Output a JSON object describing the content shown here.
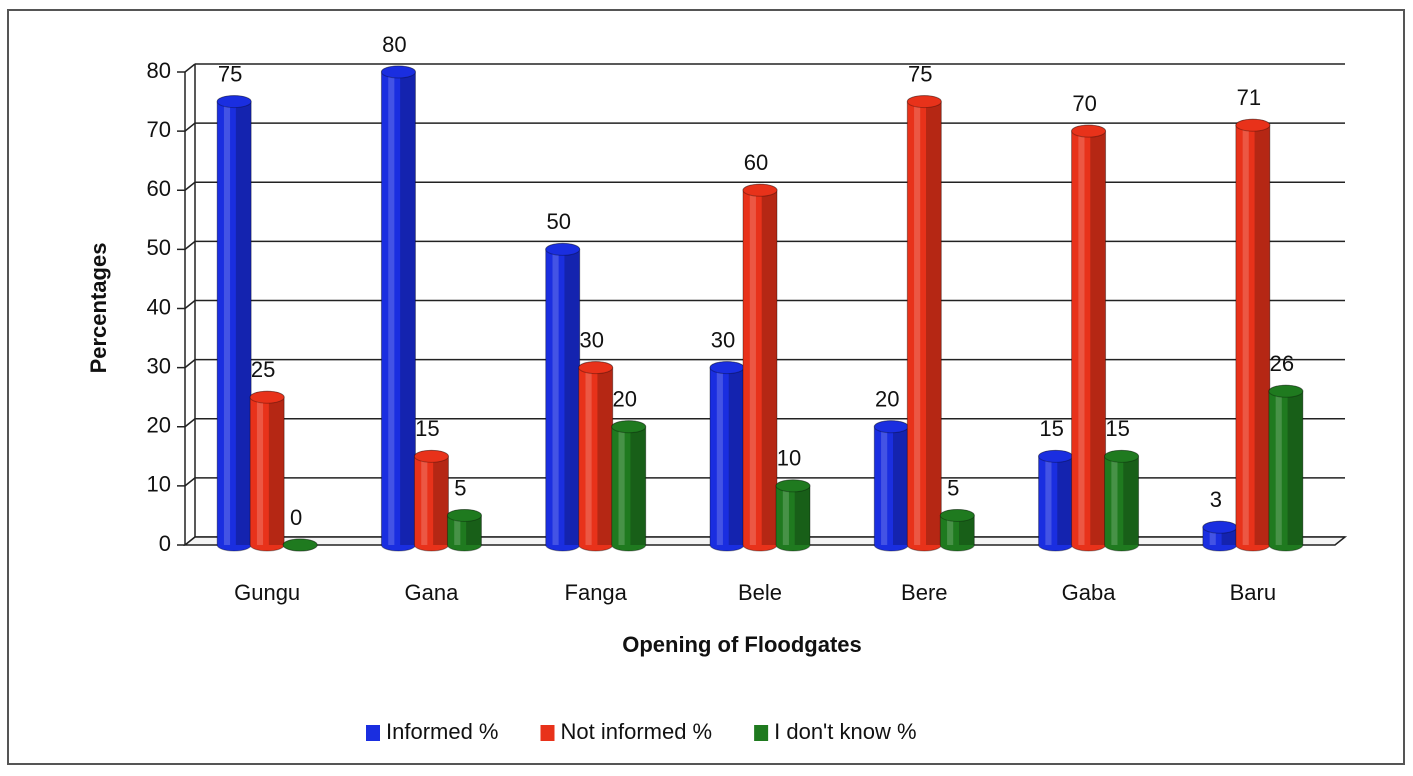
{
  "chart_data": {
    "type": "bar",
    "y_label": "Percentages",
    "x_label": "Opening of Floodgates",
    "categories": [
      "Gungu",
      "Gana",
      "Fanga",
      "Bele",
      "Bere",
      "Gaba",
      "Baru"
    ],
    "series": [
      {
        "name": "Informed %",
        "color": "#1a2ee0",
        "values": [
          75,
          80,
          50,
          30,
          20,
          15,
          3
        ]
      },
      {
        "name": "Not informed %",
        "color": "#e8321a",
        "values": [
          25,
          15,
          30,
          60,
          75,
          70,
          71
        ]
      },
      {
        "name": "I don't know %",
        "color": "#1f7a1f",
        "values": [
          0,
          5,
          20,
          10,
          5,
          15,
          26
        ]
      }
    ],
    "ylim": [
      0,
      80
    ],
    "yticks": [
      0,
      10,
      20,
      30,
      40,
      50,
      60,
      70,
      80
    ],
    "grid": true,
    "legend": "bottom"
  }
}
